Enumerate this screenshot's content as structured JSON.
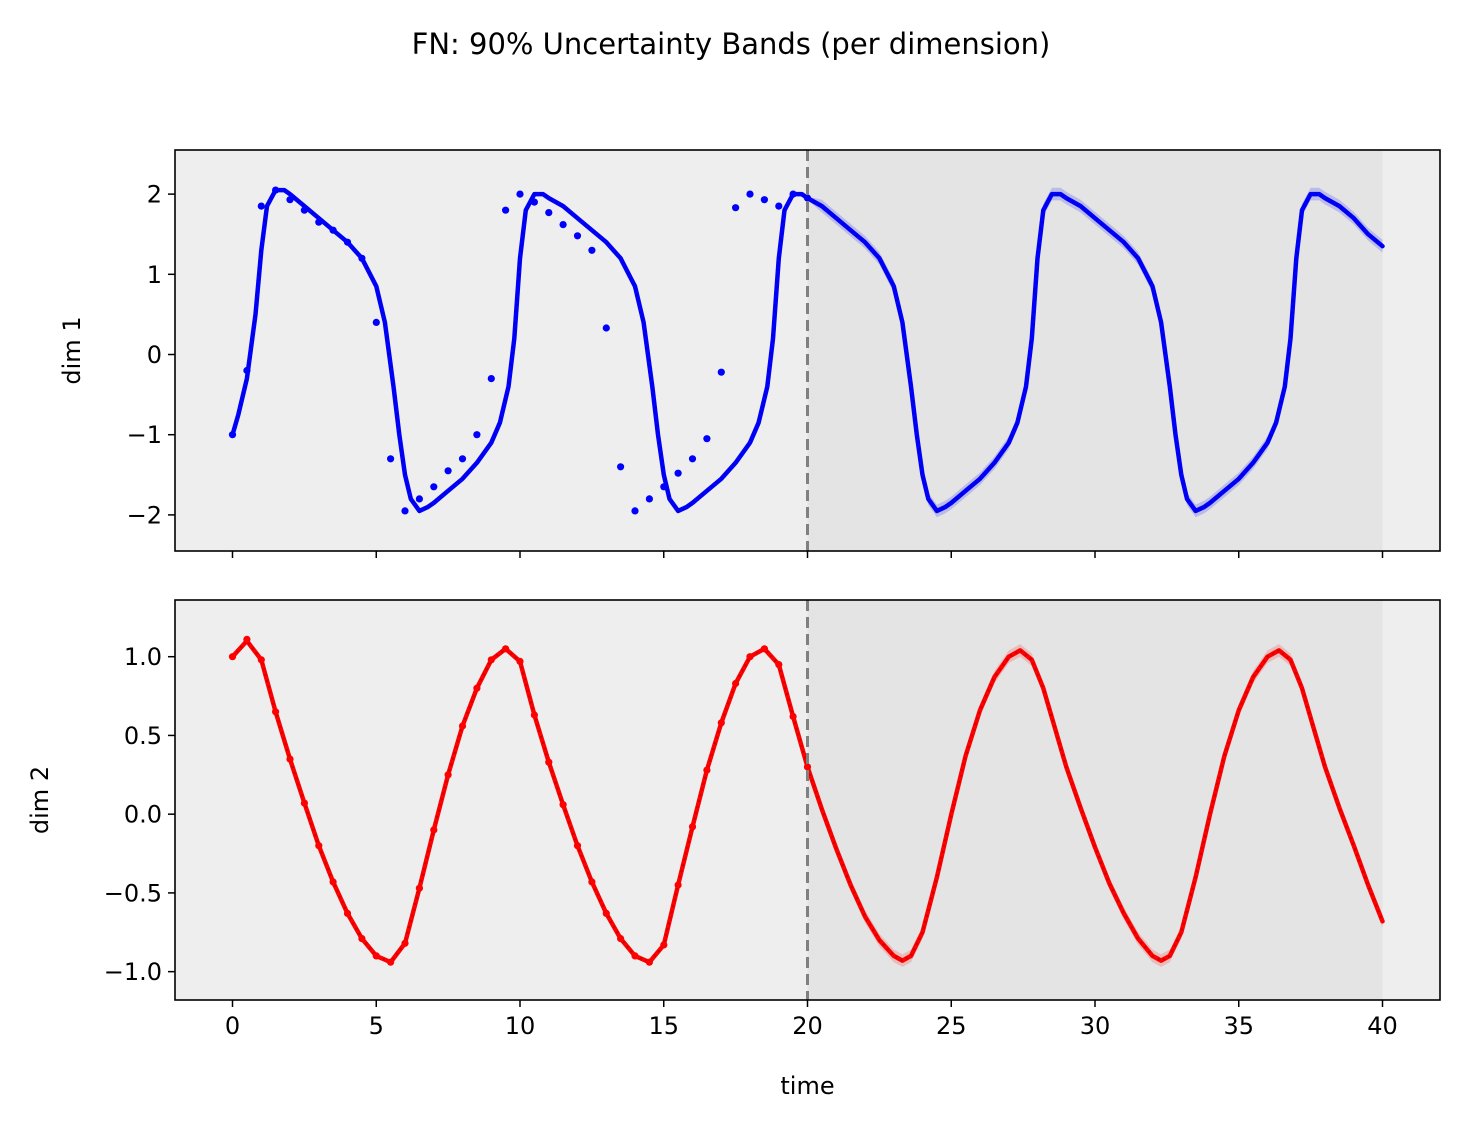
{
  "title": "FN: 90% Uncertainty Bands (per dimension)",
  "colors": {
    "dim1": "#0000ff",
    "dim2": "#ff0000",
    "axes_bg": "#eeeeee",
    "forecast_bg": "#e4e4e4",
    "divider": "#808080"
  },
  "chart_data": [
    {
      "type": "line",
      "ylabel": "dim 1",
      "xlabel": "",
      "xlim": [
        -2,
        42
      ],
      "ylim": [
        -2.45,
        2.55
      ],
      "yticks": [
        -2,
        -1,
        0,
        1,
        2
      ],
      "ytick_labels": [
        "−2",
        "−1",
        "0",
        "1",
        "2"
      ],
      "xticks": [
        0,
        5,
        10,
        15,
        20,
        25,
        30,
        35,
        40
      ],
      "xtick_labels": [],
      "split_time": 20,
      "forecast_region": [
        20,
        40
      ],
      "band": "90%",
      "series": [
        {
          "role": "mean",
          "x": [
            0,
            0.2,
            0.5,
            0.8,
            1.0,
            1.2,
            1.5,
            1.8,
            2.0,
            2.5,
            3.0,
            3.5,
            4.0,
            4.5,
            5.0,
            5.3,
            5.6,
            5.8,
            6.0,
            6.2,
            6.5,
            6.8,
            7.0,
            7.5,
            8.0,
            8.5,
            9.0,
            9.3,
            9.6,
            9.8,
            10.0,
            10.2,
            10.5,
            10.8,
            11.0,
            11.5,
            12.0,
            12.5,
            13.0,
            13.5,
            14.0,
            14.3,
            14.6,
            14.8,
            15.0,
            15.2,
            15.5,
            15.8,
            16.0,
            16.5,
            17.0,
            17.5,
            18.0,
            18.3,
            18.6,
            18.8,
            19.0,
            19.2,
            19.5,
            19.8,
            20.0,
            20.5,
            21.0,
            21.5,
            22.0,
            22.5,
            23.0,
            23.3,
            23.6,
            23.8,
            24.0,
            24.2,
            24.5,
            24.8,
            25.0,
            25.5,
            26.0,
            26.5,
            27.0,
            27.3,
            27.6,
            27.8,
            28.0,
            28.2,
            28.5,
            28.8,
            29.0,
            29.5,
            30.0,
            30.5,
            31.0,
            31.5,
            32.0,
            32.3,
            32.6,
            32.8,
            33.0,
            33.2,
            33.5,
            33.8,
            34.0,
            34.5,
            35.0,
            35.5,
            36.0,
            36.3,
            36.6,
            36.8,
            37.0,
            37.2,
            37.5,
            37.8,
            38.0,
            38.5,
            39.0,
            39.5,
            40.0
          ],
          "y": [
            -1.0,
            -0.75,
            -0.3,
            0.5,
            1.3,
            1.85,
            2.05,
            2.05,
            2.0,
            1.85,
            1.7,
            1.55,
            1.4,
            1.2,
            0.85,
            0.4,
            -0.4,
            -1.0,
            -1.5,
            -1.8,
            -1.95,
            -1.9,
            -1.85,
            -1.7,
            -1.55,
            -1.35,
            -1.1,
            -0.85,
            -0.4,
            0.2,
            1.2,
            1.8,
            2.0,
            2.0,
            1.95,
            1.85,
            1.7,
            1.55,
            1.4,
            1.2,
            0.85,
            0.4,
            -0.4,
            -1.0,
            -1.5,
            -1.8,
            -1.95,
            -1.9,
            -1.85,
            -1.7,
            -1.55,
            -1.35,
            -1.1,
            -0.85,
            -0.4,
            0.2,
            1.2,
            1.8,
            2.0,
            2.0,
            1.95,
            1.85,
            1.7,
            1.55,
            1.4,
            1.2,
            0.85,
            0.4,
            -0.4,
            -1.0,
            -1.5,
            -1.8,
            -1.95,
            -1.9,
            -1.85,
            -1.7,
            -1.55,
            -1.35,
            -1.1,
            -0.85,
            -0.4,
            0.2,
            1.2,
            1.8,
            2.0,
            2.0,
            1.95,
            1.85,
            1.7,
            1.55,
            1.4,
            1.2,
            0.85,
            0.4,
            -0.4,
            -1.0,
            -1.5,
            -1.8,
            -1.95,
            -1.9,
            -1.85,
            -1.7,
            -1.55,
            -1.35,
            -1.1,
            -0.85,
            -0.4,
            0.2,
            1.2,
            1.8,
            2.0,
            2.0,
            1.95,
            1.85,
            1.7,
            1.5,
            1.35
          ]
        },
        {
          "role": "observations",
          "x": [
            0.0,
            0.5,
            1.0,
            1.5,
            2.0,
            2.5,
            3.0,
            3.5,
            4.0,
            4.5,
            5.0,
            5.5,
            6.0,
            6.5,
            7.0,
            7.5,
            8.0,
            8.5,
            9.0,
            9.5,
            10.0,
            10.5,
            11.0,
            11.5,
            12.0,
            12.5,
            13.0,
            13.5,
            14.0,
            14.5,
            15.0,
            15.5,
            16.0,
            16.5,
            17.0,
            17.5,
            18.0,
            18.5,
            19.0,
            19.5,
            20.0
          ],
          "y": [
            -1.0,
            -0.2,
            1.85,
            2.05,
            1.93,
            1.8,
            1.65,
            1.55,
            1.4,
            1.2,
            0.4,
            -1.3,
            -1.95,
            -1.8,
            -1.65,
            -1.45,
            -1.3,
            -1.0,
            -0.3,
            1.8,
            2.0,
            1.9,
            1.77,
            1.62,
            1.48,
            1.3,
            0.33,
            -1.4,
            -1.95,
            -1.8,
            -1.65,
            -1.48,
            -1.3,
            -1.05,
            -0.22,
            1.83,
            2.0,
            1.93,
            1.85,
            2.0,
            1.95
          ]
        }
      ]
    },
    {
      "type": "line",
      "ylabel": "dim 2",
      "xlabel": "time",
      "xlim": [
        -2,
        42
      ],
      "ylim": [
        -1.18,
        1.36
      ],
      "yticks": [
        -1.0,
        -0.5,
        0.0,
        0.5,
        1.0
      ],
      "ytick_labels": [
        "−1.0",
        "−0.5",
        "0.0",
        "0.5",
        "1.0"
      ],
      "xticks": [
        0,
        5,
        10,
        15,
        20,
        25,
        30,
        35,
        40
      ],
      "xtick_labels": [
        "0",
        "5",
        "10",
        "15",
        "20",
        "25",
        "30",
        "35",
        "40"
      ],
      "split_time": 20,
      "forecast_region": [
        20,
        40
      ],
      "band": "90%",
      "series": [
        {
          "role": "mean",
          "x": [
            0.0,
            0.5,
            1.0,
            1.5,
            2.0,
            2.5,
            3.0,
            3.5,
            4.0,
            4.5,
            5.0,
            5.5,
            6.0,
            6.5,
            7.0,
            7.5,
            8.0,
            8.5,
            9.0,
            9.5,
            10.0,
            10.5,
            11.0,
            11.5,
            12.0,
            12.5,
            13.0,
            13.5,
            14.0,
            14.5,
            15.0,
            15.5,
            16.0,
            16.5,
            17.0,
            17.5,
            18.0,
            18.5,
            19.0,
            19.5,
            20.0,
            20.5,
            21.0,
            21.5,
            22.0,
            22.5,
            23.0,
            23.3,
            23.6,
            24.0,
            24.5,
            25.0,
            25.5,
            26.0,
            26.5,
            27.0,
            27.4,
            27.8,
            28.2,
            28.6,
            29.0,
            29.5,
            30.0,
            30.5,
            31.0,
            31.5,
            32.0,
            32.3,
            32.6,
            33.0,
            33.5,
            34.0,
            34.5,
            35.0,
            35.5,
            36.0,
            36.4,
            36.8,
            37.2,
            37.6,
            38.0,
            38.5,
            39.0,
            39.5,
            40.0
          ],
          "y": [
            1.0,
            1.1,
            0.98,
            0.65,
            0.35,
            0.07,
            -0.2,
            -0.43,
            -0.63,
            -0.79,
            -0.9,
            -0.94,
            -0.82,
            -0.47,
            -0.1,
            0.25,
            0.56,
            0.8,
            0.98,
            1.05,
            0.97,
            0.63,
            0.33,
            0.06,
            -0.2,
            -0.43,
            -0.63,
            -0.79,
            -0.9,
            -0.94,
            -0.83,
            -0.45,
            -0.08,
            0.28,
            0.58,
            0.83,
            1.0,
            1.05,
            0.95,
            0.62,
            0.3,
            0.03,
            -0.22,
            -0.45,
            -0.65,
            -0.8,
            -0.9,
            -0.93,
            -0.9,
            -0.75,
            -0.4,
            0.0,
            0.37,
            0.66,
            0.87,
            1.0,
            1.04,
            0.98,
            0.8,
            0.55,
            0.3,
            0.04,
            -0.21,
            -0.44,
            -0.63,
            -0.79,
            -0.9,
            -0.93,
            -0.9,
            -0.75,
            -0.4,
            0.0,
            0.37,
            0.66,
            0.87,
            1.0,
            1.04,
            0.98,
            0.8,
            0.55,
            0.3,
            0.04,
            -0.2,
            -0.45,
            -0.68
          ]
        },
        {
          "role": "observations",
          "x": [
            0.0,
            0.5,
            1.0,
            1.5,
            2.0,
            2.5,
            3.0,
            3.5,
            4.0,
            4.5,
            5.0,
            5.5,
            6.0,
            6.5,
            7.0,
            7.5,
            8.0,
            8.5,
            9.0,
            9.5,
            10.0,
            10.5,
            11.0,
            11.5,
            12.0,
            12.5,
            13.0,
            13.5,
            14.0,
            14.5,
            15.0,
            15.5,
            16.0,
            16.5,
            17.0,
            17.5,
            18.0,
            18.5,
            19.0,
            19.5,
            20.0
          ],
          "y": [
            1.0,
            1.11,
            0.98,
            0.65,
            0.35,
            0.07,
            -0.2,
            -0.43,
            -0.63,
            -0.79,
            -0.9,
            -0.94,
            -0.82,
            -0.47,
            -0.1,
            0.25,
            0.56,
            0.8,
            0.98,
            1.05,
            0.97,
            0.63,
            0.33,
            0.06,
            -0.2,
            -0.43,
            -0.63,
            -0.79,
            -0.9,
            -0.94,
            -0.83,
            -0.45,
            -0.08,
            0.28,
            0.58,
            0.83,
            1.0,
            1.05,
            0.95,
            0.62,
            0.3
          ]
        }
      ]
    }
  ]
}
